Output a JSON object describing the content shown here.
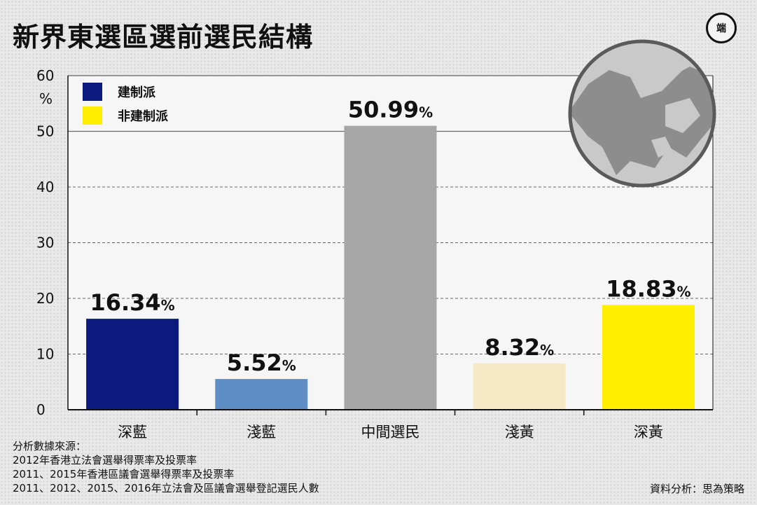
{
  "title": "新界東選區選前選民結構",
  "logo_text": "端",
  "chart_data": {
    "type": "bar",
    "categories": [
      "深藍",
      "淺藍",
      "中間選民",
      "淺黃",
      "深黃"
    ],
    "values": [
      16.34,
      5.52,
      50.99,
      8.32,
      18.83
    ],
    "value_labels": [
      "16.34",
      "5.52",
      "50.99",
      "8.32",
      "18.83"
    ],
    "value_suffix": "%",
    "colors": [
      "#0d1a7d",
      "#5f8ec6",
      "#a6a6a6",
      "#f5eac5",
      "#ffee00"
    ],
    "ylim": [
      0,
      60
    ],
    "yticks": [
      0,
      10,
      20,
      30,
      40,
      50,
      60
    ],
    "ylabel": "%",
    "grid": true,
    "legend": [
      {
        "label": "建制派",
        "color": "#0d1a7d"
      },
      {
        "label": "非建制派",
        "color": "#ffee00"
      }
    ],
    "legend_position": "top-left"
  },
  "sources": [
    "分析數據來源：",
    "2012年香港立法會選舉得票率及投票率",
    "2011、2015年香港區議會選舉得票率及投票率",
    "2011、2012、2015、2016年立法會及區議會選舉登記選民人數"
  ],
  "credit": "資料分析：思為策略"
}
